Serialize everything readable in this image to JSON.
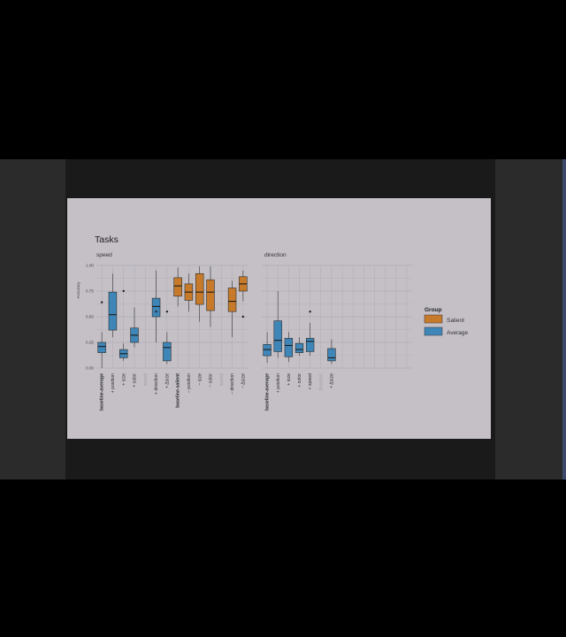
{
  "slide": {
    "title": "Tasks",
    "colors": {
      "Salient": "#c77b2a",
      "Average": "#3f86b8",
      "background": "#c4c0c6",
      "grid": "#b0acb3"
    }
  },
  "legend": {
    "title": "Group",
    "items": [
      {
        "label": "Salient",
        "color": "#c77b2a"
      },
      {
        "label": "Average",
        "color": "#3f86b8"
      }
    ]
  },
  "chart_data": [
    {
      "type": "box",
      "title": "speed",
      "ylabel": "Accuracy",
      "ylim": [
        0,
        1
      ],
      "yticks": [
        "0.00",
        "0.25",
        "0.50",
        "0.75",
        "1.00"
      ],
      "categories": [
        {
          "label": "baseline-average",
          "bold": true,
          "faded": false
        },
        {
          "label": "+ position",
          "bold": false,
          "faded": false
        },
        {
          "label": "+ size",
          "bold": false,
          "faded": false
        },
        {
          "label": "+ color",
          "bold": false,
          "faded": false
        },
        {
          "label": "speed",
          "bold": false,
          "faded": true
        },
        {
          "label": "+ direction",
          "bold": false,
          "faded": false
        },
        {
          "label": "+ Δsize",
          "bold": false,
          "faded": false
        },
        {
          "label": "baseline-salient",
          "bold": true,
          "faded": false
        },
        {
          "label": "− position",
          "bold": false,
          "faded": false
        },
        {
          "label": "− size",
          "bold": false,
          "faded": false
        },
        {
          "label": "− color",
          "bold": false,
          "faded": false
        },
        {
          "label": "speed",
          "bold": false,
          "faded": true
        },
        {
          "label": "− direction",
          "bold": false,
          "faded": false
        },
        {
          "label": "− Δsize",
          "bold": false,
          "faded": false
        }
      ],
      "boxes": [
        {
          "index": 0,
          "group": "Average",
          "min": 0.0,
          "q1": 0.15,
          "median": 0.21,
          "q3": 0.25,
          "max": 0.35,
          "outliers": [
            0.64
          ]
        },
        {
          "index": 1,
          "group": "Average",
          "min": 0.3,
          "q1": 0.37,
          "median": 0.52,
          "q3": 0.74,
          "max": 0.92,
          "outliers": []
        },
        {
          "index": 2,
          "group": "Average",
          "min": 0.07,
          "q1": 0.1,
          "median": 0.14,
          "q3": 0.18,
          "max": 0.24,
          "outliers": [
            0.75
          ]
        },
        {
          "index": 3,
          "group": "Average",
          "min": 0.2,
          "q1": 0.25,
          "median": 0.32,
          "q3": 0.39,
          "max": 0.59,
          "outliers": []
        },
        {
          "index": 5,
          "group": "Average",
          "min": 0.25,
          "q1": 0.5,
          "median": 0.6,
          "q3": 0.68,
          "max": 0.95,
          "outliers": [
            0.55
          ]
        },
        {
          "index": 6,
          "group": "Average",
          "min": 0.04,
          "q1": 0.07,
          "median": 0.2,
          "q3": 0.25,
          "max": 0.35,
          "outliers": [
            0.55
          ]
        },
        {
          "index": 7,
          "group": "Salient",
          "min": 0.6,
          "q1": 0.7,
          "median": 0.8,
          "q3": 0.88,
          "max": 0.98,
          "outliers": []
        },
        {
          "index": 8,
          "group": "Salient",
          "min": 0.55,
          "q1": 0.66,
          "median": 0.74,
          "q3": 0.82,
          "max": 0.92,
          "outliers": []
        },
        {
          "index": 9,
          "group": "Salient",
          "min": 0.45,
          "q1": 0.62,
          "median": 0.74,
          "q3": 0.92,
          "max": 0.99,
          "outliers": []
        },
        {
          "index": 10,
          "group": "Salient",
          "min": 0.4,
          "q1": 0.56,
          "median": 0.74,
          "q3": 0.86,
          "max": 0.99,
          "outliers": []
        },
        {
          "index": 12,
          "group": "Salient",
          "min": 0.3,
          "q1": 0.55,
          "median": 0.65,
          "q3": 0.78,
          "max": 0.85,
          "outliers": []
        },
        {
          "index": 13,
          "group": "Salient",
          "min": 0.65,
          "q1": 0.75,
          "median": 0.82,
          "q3": 0.89,
          "max": 0.95,
          "outliers": [
            0.5
          ]
        }
      ]
    },
    {
      "type": "box",
      "title": "direction",
      "ylim": [
        0,
        1
      ],
      "categories": [
        {
          "label": "baseline-average",
          "bold": true,
          "faded": false
        },
        {
          "label": "+ position",
          "bold": false,
          "faded": false
        },
        {
          "label": "+ size",
          "bold": false,
          "faded": false
        },
        {
          "label": "+ color",
          "bold": false,
          "faded": false
        },
        {
          "label": "+ speed",
          "bold": false,
          "faded": false
        },
        {
          "label": "direction",
          "bold": false,
          "faded": true
        },
        {
          "label": "+ Δsize",
          "bold": false,
          "faded": false
        }
      ],
      "boxes": [
        {
          "index": 0,
          "group": "Average",
          "min": 0.05,
          "q1": 0.12,
          "median": 0.18,
          "q3": 0.23,
          "max": 0.35,
          "outliers": []
        },
        {
          "index": 1,
          "group": "Average",
          "min": 0.1,
          "q1": 0.16,
          "median": 0.27,
          "q3": 0.46,
          "max": 0.75,
          "outliers": []
        },
        {
          "index": 2,
          "group": "Average",
          "min": 0.06,
          "q1": 0.11,
          "median": 0.22,
          "q3": 0.29,
          "max": 0.35,
          "outliers": []
        },
        {
          "index": 3,
          "group": "Average",
          "min": 0.12,
          "q1": 0.15,
          "median": 0.18,
          "q3": 0.24,
          "max": 0.3,
          "outliers": []
        },
        {
          "index": 4,
          "group": "Average",
          "min": 0.12,
          "q1": 0.16,
          "median": 0.26,
          "q3": 0.29,
          "max": 0.44,
          "outliers": [
            0.55
          ]
        },
        {
          "index": 6,
          "group": "Average",
          "min": 0.04,
          "q1": 0.07,
          "median": 0.1,
          "q3": 0.19,
          "max": 0.28,
          "outliers": []
        }
      ]
    }
  ]
}
